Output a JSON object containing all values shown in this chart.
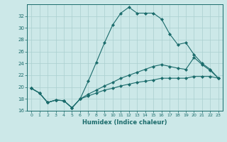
{
  "xlabel": "Humidex (Indice chaleur)",
  "ylabel": "",
  "bg_color": "#cce8e8",
  "grid_color": "#aacfcf",
  "line_color": "#1a6b6b",
  "xlim": [
    -0.5,
    23.5
  ],
  "ylim": [
    16,
    34
  ],
  "xticks": [
    0,
    1,
    2,
    3,
    4,
    5,
    6,
    7,
    8,
    9,
    10,
    11,
    12,
    13,
    14,
    15,
    16,
    17,
    18,
    19,
    20,
    21,
    22,
    23
  ],
  "yticks": [
    16,
    18,
    20,
    22,
    24,
    26,
    28,
    30,
    32
  ],
  "series": [
    [
      19.8,
      19.0,
      17.4,
      17.8,
      17.7,
      16.5,
      18.0,
      21.0,
      24.2,
      27.5,
      30.5,
      32.5,
      33.5,
      32.5,
      32.5,
      32.5,
      31.5,
      29.0,
      27.2,
      27.5,
      25.5,
      24.0,
      23.0,
      21.5
    ],
    [
      19.8,
      19.0,
      17.4,
      17.8,
      17.7,
      16.5,
      18.0,
      18.8,
      19.5,
      20.2,
      20.8,
      21.5,
      22.0,
      22.5,
      23.0,
      23.5,
      23.8,
      23.5,
      23.2,
      23.0,
      25.0,
      23.8,
      22.8,
      21.5
    ],
    [
      19.8,
      19.0,
      17.4,
      17.8,
      17.7,
      16.5,
      18.0,
      18.5,
      19.0,
      19.5,
      19.8,
      20.2,
      20.5,
      20.8,
      21.0,
      21.2,
      21.5,
      21.5,
      21.5,
      21.5,
      21.8,
      21.8,
      21.8,
      21.5
    ]
  ]
}
